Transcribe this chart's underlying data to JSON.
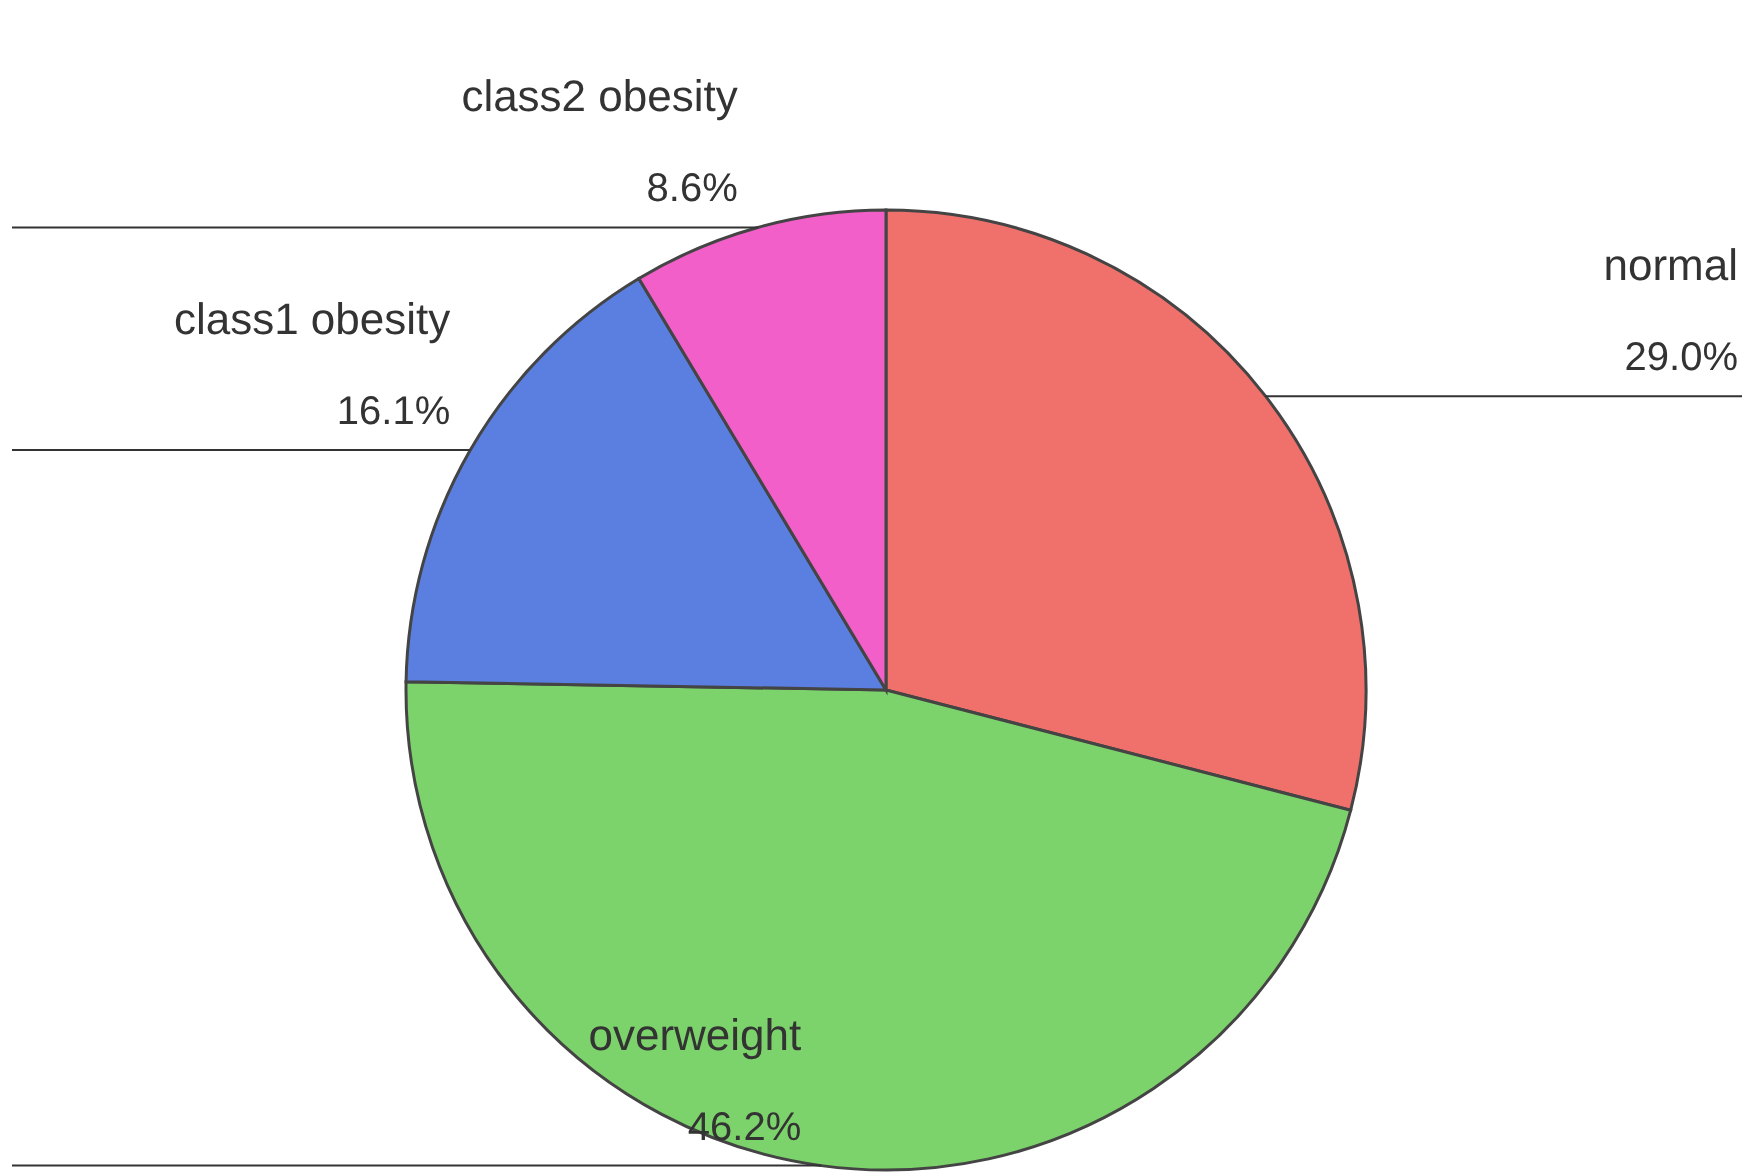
{
  "chart_data": {
    "type": "pie",
    "categories": [
      "normal",
      "overweight",
      "class1 obesity",
      "class2 obesity"
    ],
    "values": [
      29.0,
      46.2,
      16.1,
      8.6
    ],
    "value_labels": [
      "29.0%",
      "46.2%",
      "16.1%",
      "8.6%"
    ],
    "colors": [
      "#f0716b",
      "#7dd36b",
      "#5b7fe0",
      "#f25fc8"
    ],
    "legend": false
  }
}
